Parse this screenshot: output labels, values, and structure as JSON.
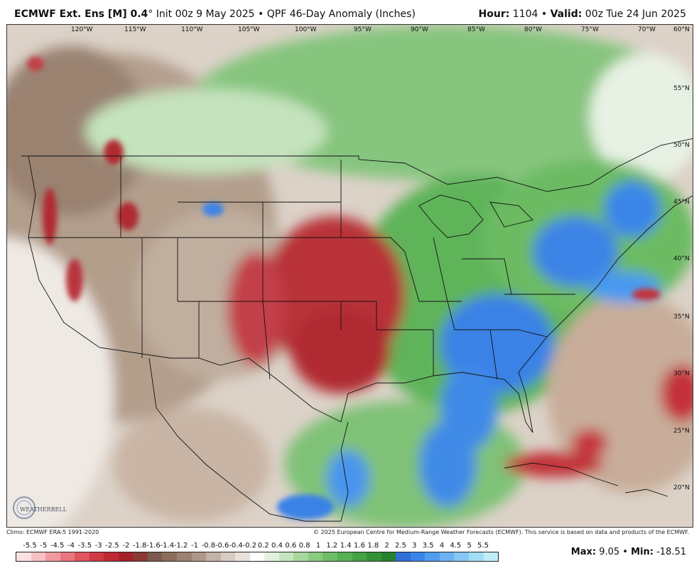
{
  "header": {
    "model": "ECMWF Ext. Ens [M] 0.4",
    "degree": "°",
    "init": " Init 00z 9 May 2025",
    "sep": " • ",
    "product": "QPF 46-Day Anomaly (Inches)",
    "hour_label": "Hour:",
    "hour_value": " 1104 ",
    "valid_label": "Valid:",
    "valid_value": " 00z Tue 24 Jun 2025"
  },
  "longitude_labels": [
    "120°W",
    "115°W",
    "110°W",
    "105°W",
    "100°W",
    "95°W",
    "90°W",
    "85°W",
    "80°W",
    "75°W",
    "70°W"
  ],
  "latitude_labels": [
    "60°N",
    "55°N",
    "50°N",
    "45°N",
    "40°N",
    "35°N",
    "30°N",
    "25°N",
    "20°N"
  ],
  "footer": {
    "climo": "Climo: ECMWF ERA-5 1991-2020",
    "copyright": "© 2025 European Centre for Medium-Range Weather Forecasts (ECMWF). This service is based on data and products of the ECMWF.",
    "max_label": "Max:",
    "max_value": " 9.05",
    "min_label": "Min:",
    "min_value": " -18.51",
    "logo_text": "WEATHERBELL"
  },
  "color_scale": {
    "ticks": [
      "-5.5",
      "-5",
      "-4.5",
      "-4",
      "-3.5",
      "-3",
      "-2.5",
      "-2",
      "-1.8",
      "-1.6",
      "-1.4",
      "-1.2",
      "-1",
      "-0.8",
      "-0.6",
      "-0.4",
      "-0.2",
      "0.2",
      "0.4",
      "0.6",
      "0.8",
      "1",
      "1.2",
      "1.4",
      "1.6",
      "1.8",
      "2",
      "2.5",
      "3",
      "3.5",
      "4",
      "4.5",
      "5",
      "5.5"
    ],
    "colors": [
      "#fde0e0",
      "#f7c1c4",
      "#f09aa0",
      "#e8767e",
      "#de555f",
      "#cf3a44",
      "#bd2a32",
      "#a52128",
      "#8a3a32",
      "#7a5a4c",
      "#8b6d5c",
      "#9c8272",
      "#ae978a",
      "#c4b2a8",
      "#d8cbc3",
      "#e9e1dc",
      "#ffffff",
      "#e3f2de",
      "#c4e5bd",
      "#a6d89c",
      "#8acb80",
      "#6fbe67",
      "#57b152",
      "#43a243",
      "#339238",
      "#25822e",
      "#2f6fd6",
      "#3a85ea",
      "#509cf0",
      "#6bb3f2",
      "#86c8f4",
      "#a2dcf6",
      "#bfeef8"
    ]
  },
  "colors": {
    "land_dry": "#b8a493",
    "land_wet": "#8acb80",
    "ocean": "#ffffff"
  }
}
